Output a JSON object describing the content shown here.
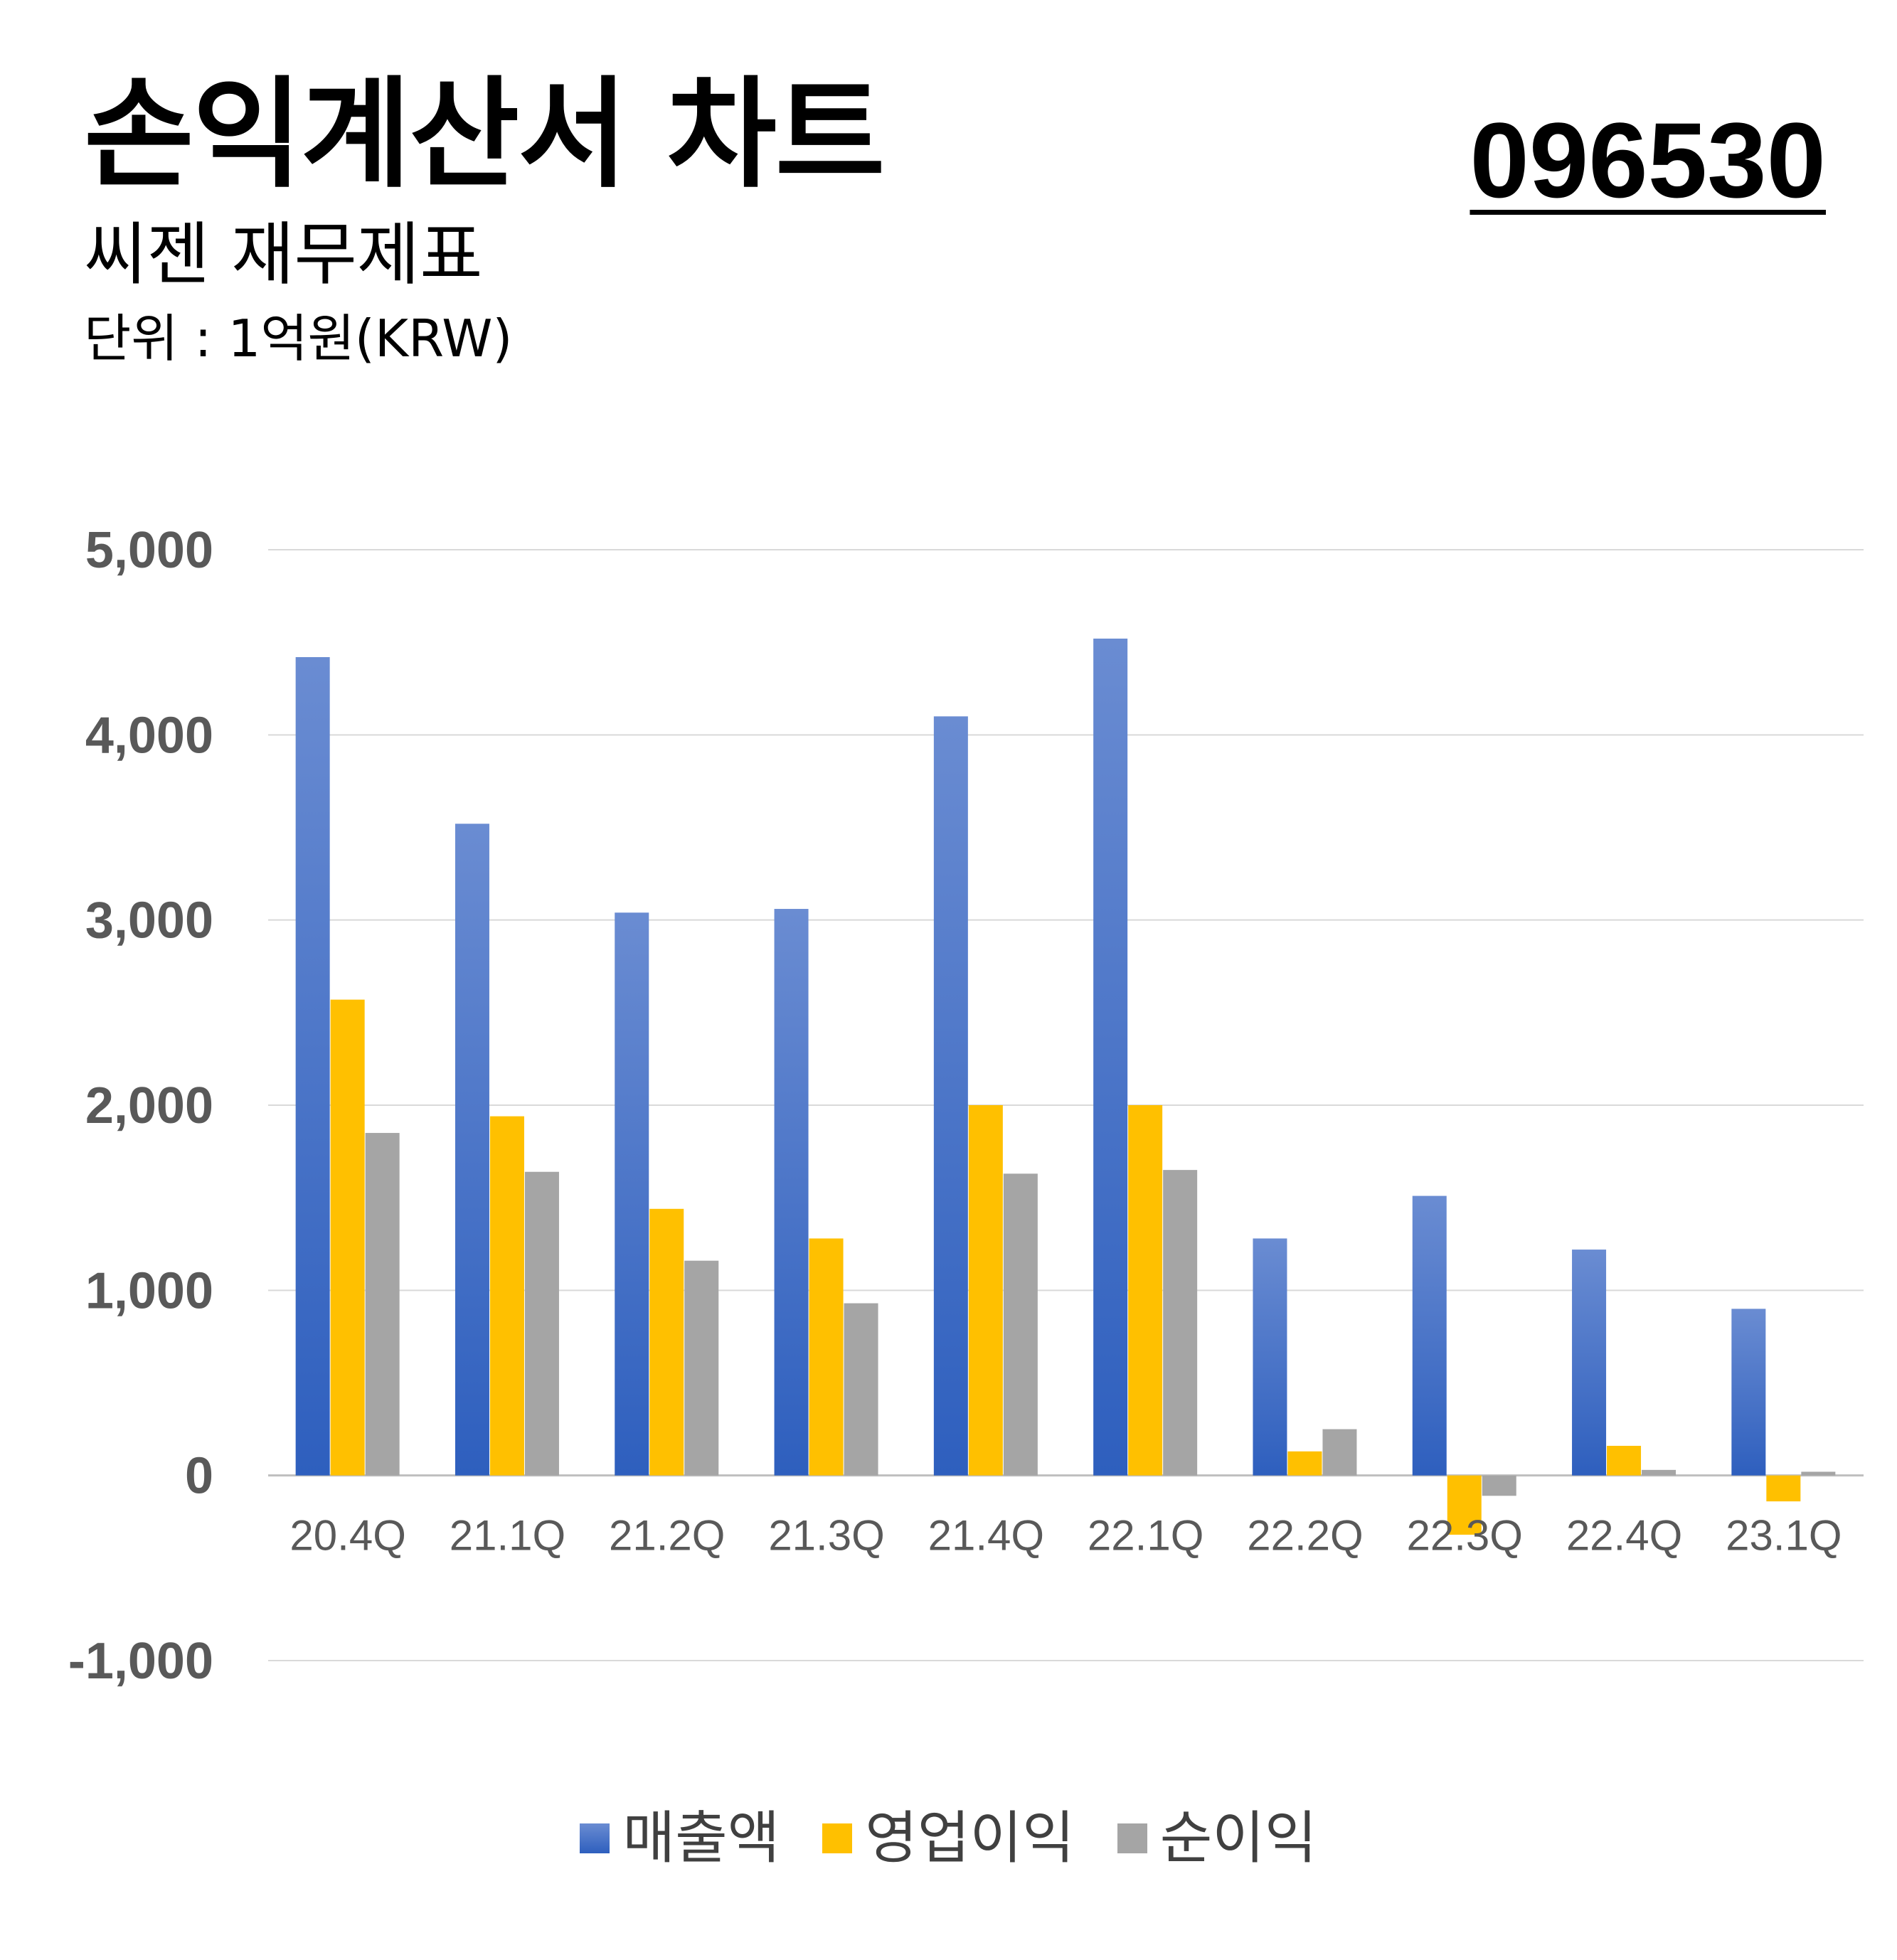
{
  "header": {
    "title": "손익계산서 차트",
    "subtitle": "씨젠 재무제표",
    "unit": "단위 : 1억원(KRW)",
    "stock_code": "096530"
  },
  "colors": {
    "revenue": "#4472C4",
    "operating_profit": "#FFC000",
    "net_profit": "#A5A5A5",
    "gridline": "#D9D9D9",
    "tick_text": "#595959"
  },
  "chart_data": {
    "type": "bar",
    "categories": [
      "20.4Q",
      "21.1Q",
      "21.2Q",
      "21.3Q",
      "21.4Q",
      "22.1Q",
      "22.2Q",
      "22.3Q",
      "22.4Q",
      "23.1Q"
    ],
    "series": [
      {
        "name": "매출액",
        "values": [
          4420,
          3520,
          3040,
          3060,
          4100,
          4520,
          1280,
          1510,
          1220,
          900
        ]
      },
      {
        "name": "영업이익",
        "values": [
          2570,
          1940,
          1440,
          1280,
          2000,
          2000,
          130,
          -320,
          160,
          -140
        ]
      },
      {
        "name": "순이익",
        "values": [
          1850,
          1640,
          1160,
          930,
          1630,
          1650,
          250,
          -110,
          30,
          20
        ]
      }
    ],
    "yticks": [
      "5,000",
      "4,000",
      "3,000",
      "2,000",
      "1,000",
      "0",
      "-1,000"
    ],
    "ylim": [
      -1000,
      5000
    ],
    "grid": true,
    "legend_position": "bottom"
  }
}
